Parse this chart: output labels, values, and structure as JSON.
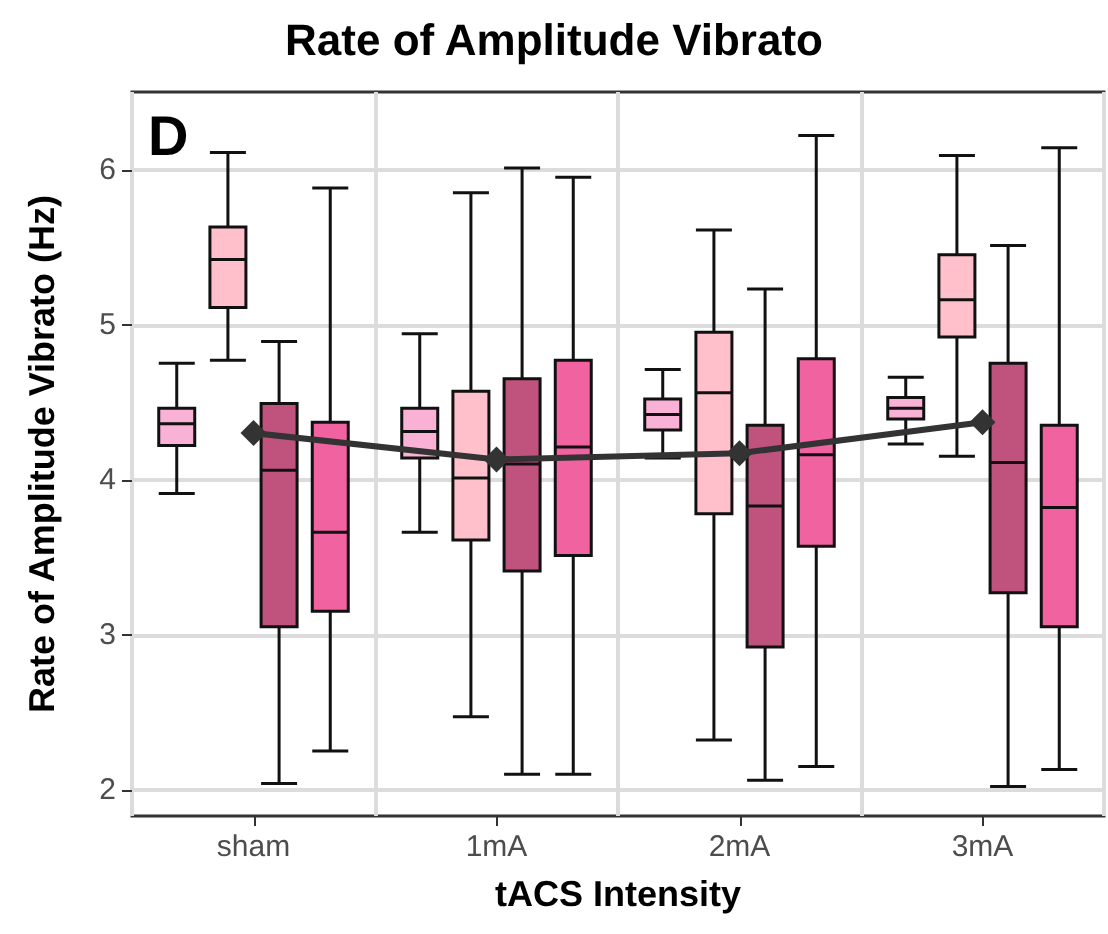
{
  "chart_data": {
    "type": "box",
    "title": "Rate of Amplitude Vibrato",
    "xlabel": "tACS Intensity",
    "ylabel": "Rate of Amplitude Vibrato (Hz)",
    "categories": [
      "sham",
      "1mA",
      "2mA",
      "3mA"
    ],
    "series": [
      {
        "type": "box",
        "color": "#f9b2d5",
        "boxes": [
          {
            "low": 3.91,
            "q1": 4.22,
            "median": 4.36,
            "q3": 4.46,
            "high": 4.75
          },
          {
            "low": 3.66,
            "q1": 4.14,
            "median": 4.31,
            "q3": 4.46,
            "high": 4.94
          },
          {
            "low": 4.14,
            "q1": 4.32,
            "median": 4.42,
            "q3": 4.52,
            "high": 4.71
          },
          {
            "low": 4.23,
            "q1": 4.39,
            "median": 4.46,
            "q3": 4.53,
            "high": 4.66
          }
        ]
      },
      {
        "type": "box",
        "color": "#ffc0cb",
        "boxes": [
          {
            "low": 4.77,
            "q1": 5.11,
            "median": 5.42,
            "q3": 5.63,
            "high": 6.11
          },
          {
            "low": 2.47,
            "q1": 3.61,
            "median": 4.01,
            "q3": 4.57,
            "high": 5.85
          },
          {
            "low": 2.32,
            "q1": 3.78,
            "median": 4.56,
            "q3": 4.95,
            "high": 5.61
          },
          {
            "low": 4.15,
            "q1": 4.92,
            "median": 5.16,
            "q3": 5.45,
            "high": 6.09
          }
        ]
      },
      {
        "type": "box",
        "color": "#c0527e",
        "boxes": [
          {
            "low": 2.04,
            "q1": 3.05,
            "median": 4.06,
            "q3": 4.49,
            "high": 4.89
          },
          {
            "low": 2.1,
            "q1": 3.41,
            "median": 4.1,
            "q3": 4.65,
            "high": 6.01
          },
          {
            "low": 2.06,
            "q1": 2.92,
            "median": 3.83,
            "q3": 4.35,
            "high": 5.23
          },
          {
            "low": 2.02,
            "q1": 3.27,
            "median": 4.11,
            "q3": 4.75,
            "high": 5.51
          }
        ]
      },
      {
        "type": "box",
        "color": "#f062a0",
        "boxes": [
          {
            "low": 2.25,
            "q1": 3.15,
            "median": 3.66,
            "q3": 4.37,
            "high": 5.88
          },
          {
            "low": 2.1,
            "q1": 3.51,
            "median": 4.21,
            "q3": 4.77,
            "high": 5.95
          },
          {
            "low": 2.15,
            "q1": 3.57,
            "median": 4.16,
            "q3": 4.78,
            "high": 6.22
          },
          {
            "low": 2.13,
            "q1": 3.05,
            "median": 3.82,
            "q3": 4.35,
            "high": 6.14
          }
        ]
      },
      {
        "type": "line",
        "color": "#333333",
        "marker": "diamond",
        "values": [
          4.3,
          4.13,
          4.17,
          4.37
        ]
      }
    ],
    "ylim": [
      1.83,
      6.5
    ],
    "yticks": [
      2,
      3,
      4,
      5,
      6
    ],
    "grid": true,
    "annotations": [
      "D"
    ]
  }
}
